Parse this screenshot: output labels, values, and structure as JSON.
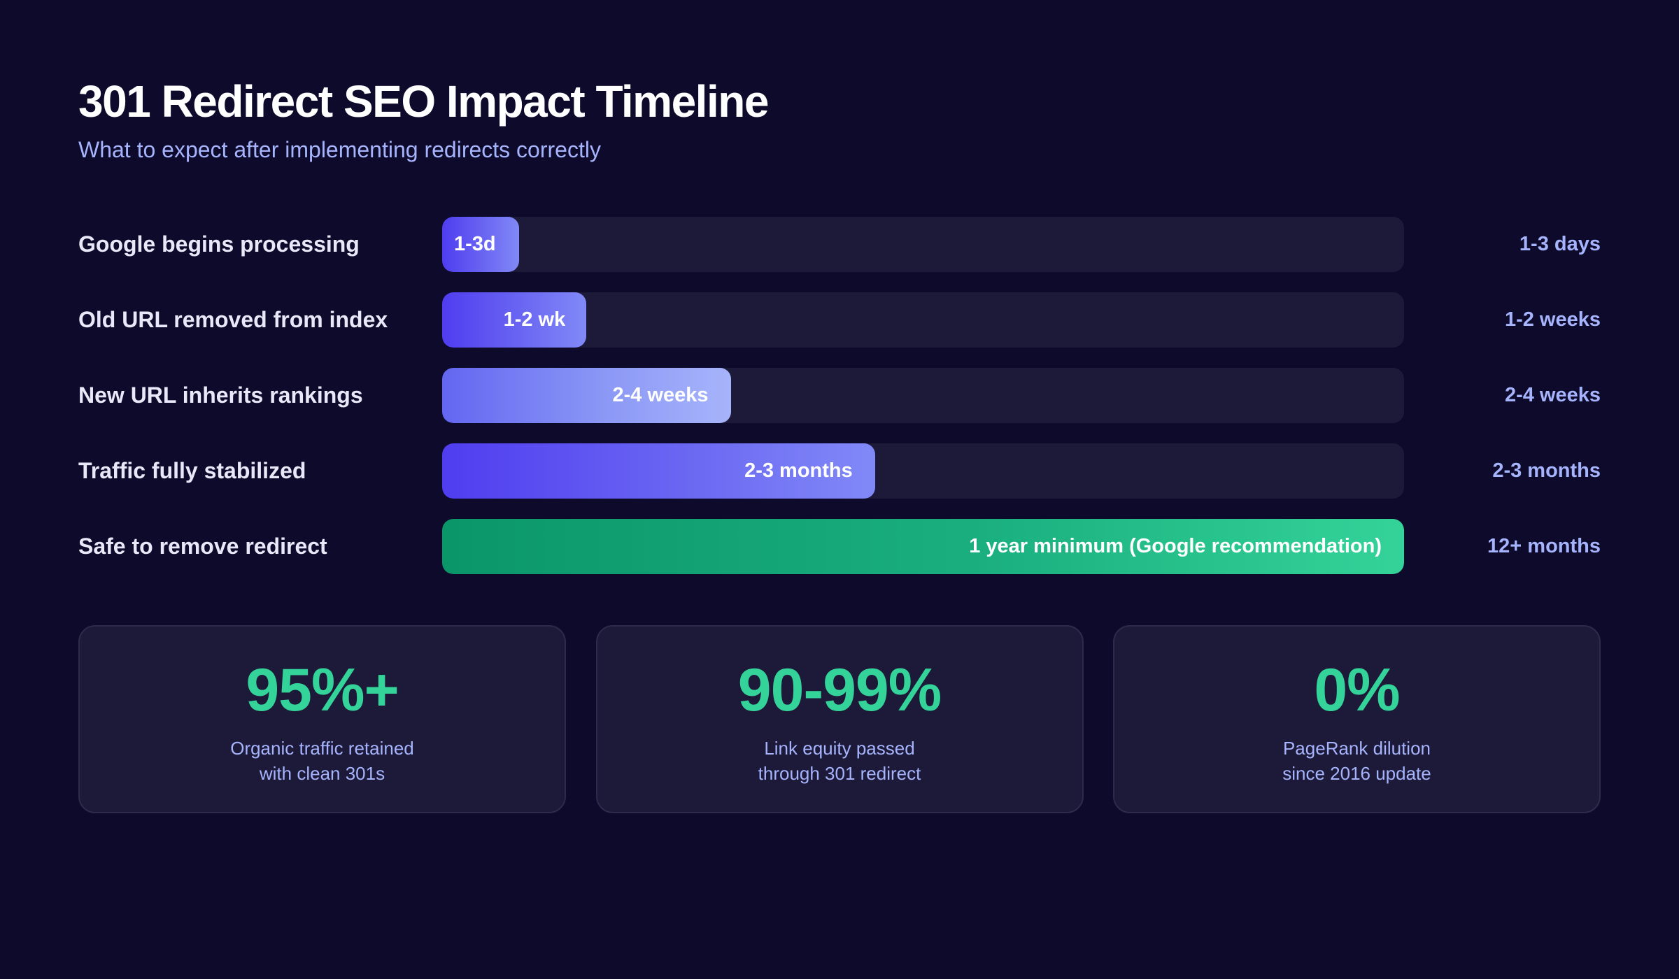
{
  "header": {
    "title": "301 Redirect SEO Impact Timeline",
    "subtitle": "What to expect after implementing redirects correctly"
  },
  "colors": {
    "background": "#0e0a2b",
    "track": "#1d1938",
    "indigo_start": "#4f3df0",
    "indigo_end": "#8189f7",
    "light_end": "#a7b4fb",
    "green_start": "#0b9669",
    "green_end": "#34d399",
    "accent_text": "#a5b4fc",
    "stat_value": "#34d399"
  },
  "timeline": [
    {
      "label": "Google begins processing",
      "bar_text": "1-3d",
      "duration": "1-3 days",
      "percent": 8,
      "style": "indigo"
    },
    {
      "label": "Old URL removed from index",
      "bar_text": "1-2 wk",
      "duration": "1-2 weeks",
      "percent": 15,
      "style": "indigo"
    },
    {
      "label": "New URL inherits rankings",
      "bar_text": "2-4 weeks",
      "duration": "2-4 weeks",
      "percent": 30,
      "style": "light"
    },
    {
      "label": "Traffic fully stabilized",
      "bar_text": "2-3 months",
      "duration": "2-3 months",
      "percent": 45,
      "style": "indigo"
    },
    {
      "label": "Safe to remove redirect",
      "bar_text": "1 year minimum (Google recommendation)",
      "duration": "12+ months",
      "percent": 100,
      "style": "green"
    }
  ],
  "stats": [
    {
      "value": "95%+",
      "line1": "Organic traffic retained",
      "line2": "with clean 301s"
    },
    {
      "value": "90-99%",
      "line1": "Link equity passed",
      "line2": "through 301 redirect"
    },
    {
      "value": "0%",
      "line1": "PageRank dilution",
      "line2": "since 2016 update"
    }
  ],
  "chart_data": {
    "type": "bar",
    "orientation": "horizontal",
    "title": "301 Redirect SEO Impact Timeline",
    "subtitle": "What to expect after implementing redirects correctly",
    "categories": [
      "Google begins processing",
      "Old URL removed from index",
      "New URL inherits rankings",
      "Traffic fully stabilized",
      "Safe to remove redirect"
    ],
    "values": [
      8,
      15,
      30,
      45,
      100
    ],
    "bar_labels": [
      "1-3d",
      "1-2 wk",
      "2-4 weeks",
      "2-3 months",
      "1 year minimum (Google recommendation)"
    ],
    "right_labels": [
      "1-3 days",
      "1-2 weeks",
      "2-4 weeks",
      "2-3 months",
      "12+ months"
    ],
    "xlabel": "",
    "ylabel": "",
    "xlim": [
      0,
      100
    ],
    "grid": false,
    "legend": null
  }
}
